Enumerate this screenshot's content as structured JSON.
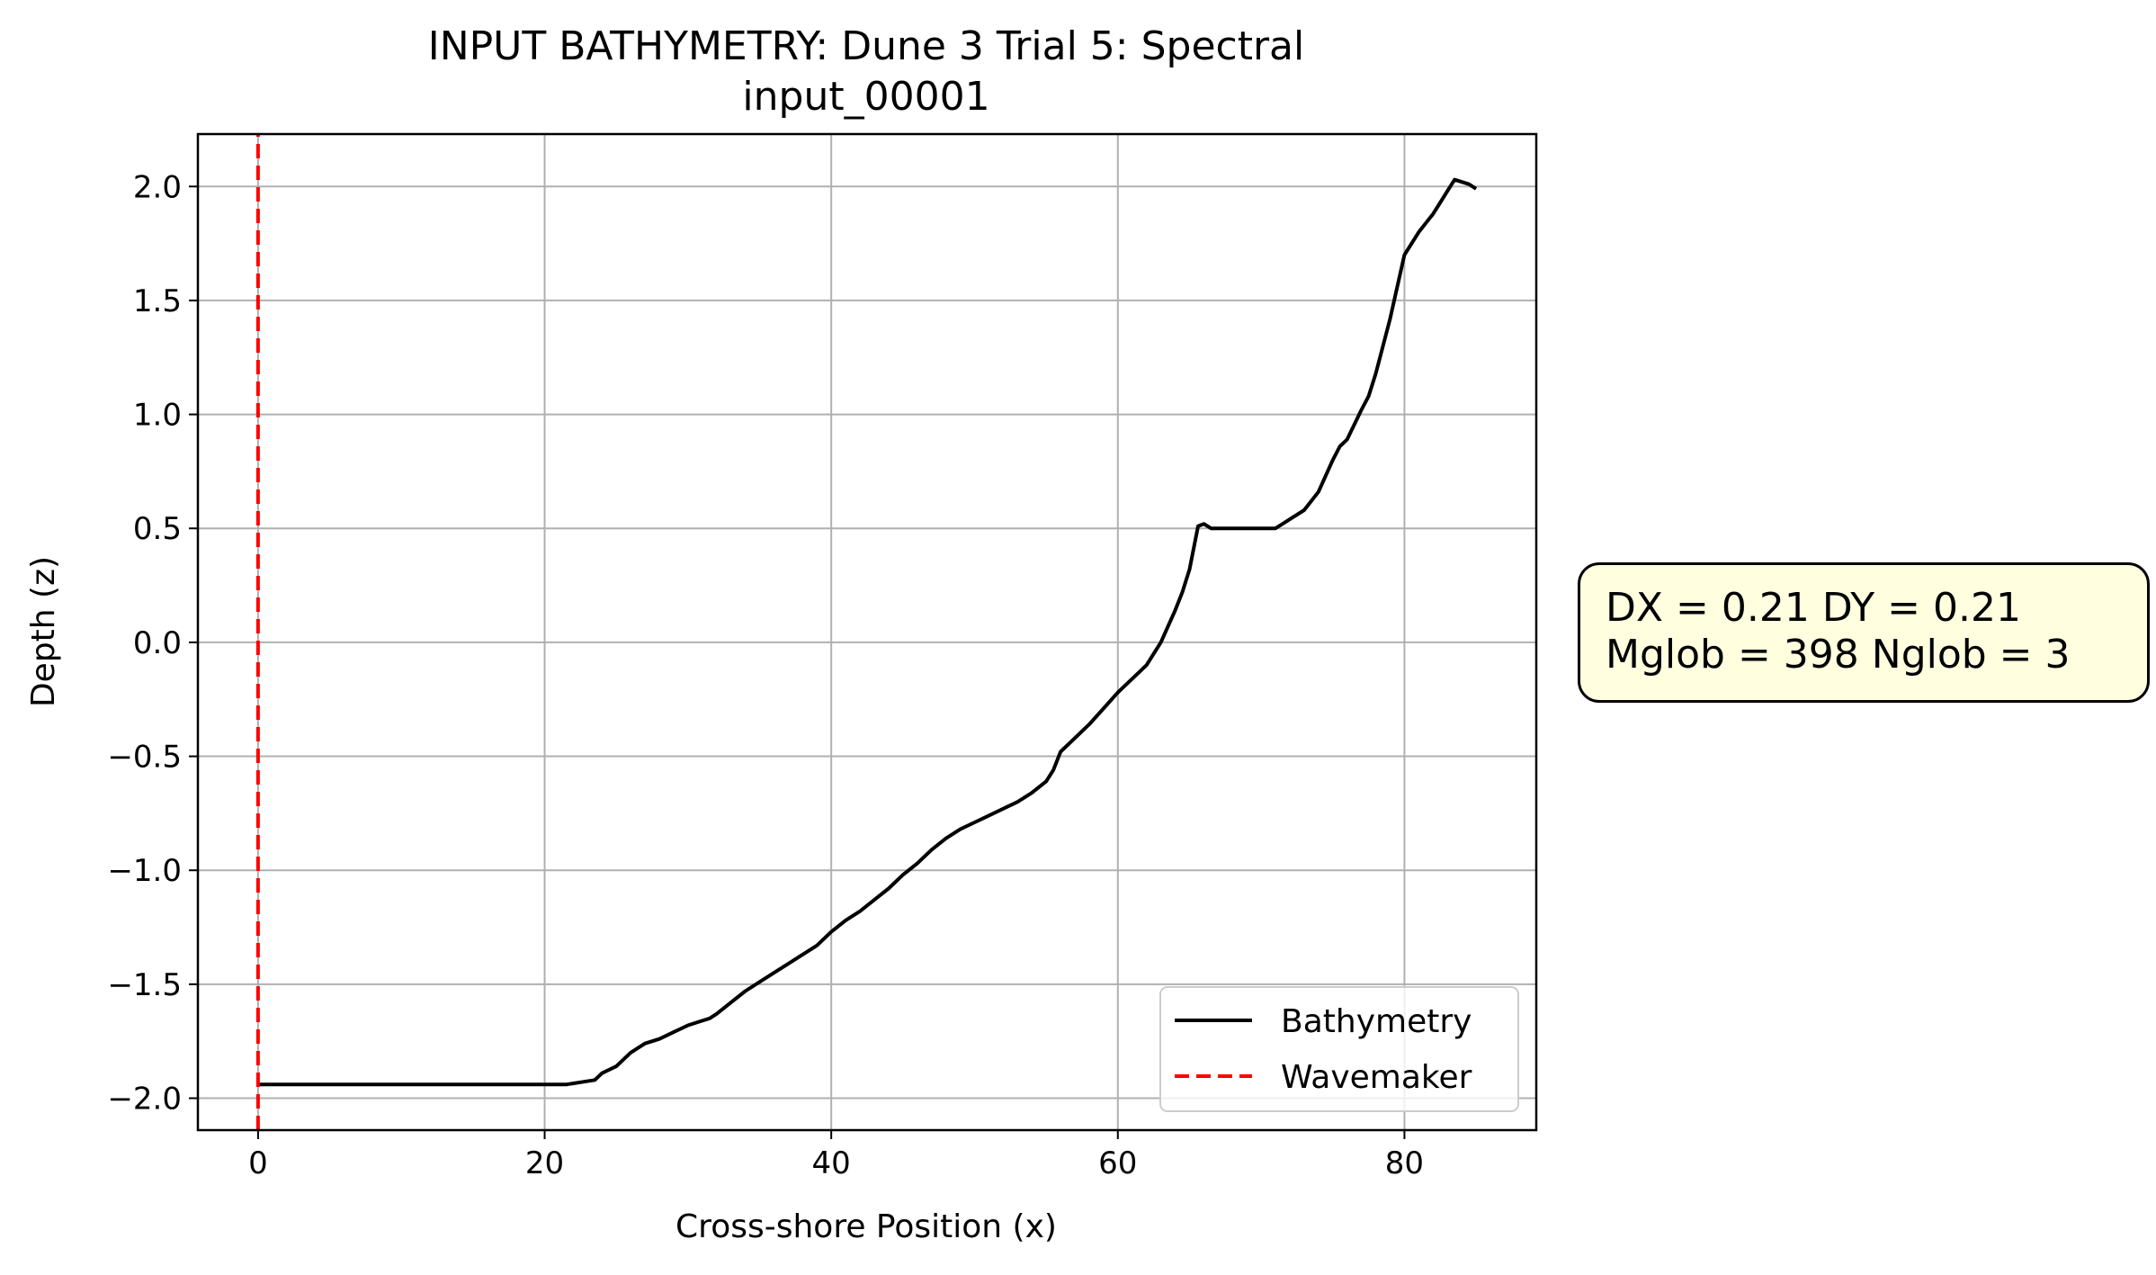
{
  "chart_data": {
    "type": "line",
    "title": "INPUT BATHYMETRY: Dune 3 Trial 5: Spectral",
    "subtitle": "input_00001",
    "xlabel": "Cross-shore Position (x)",
    "ylabel": "Depth (z)",
    "xlim": [
      -4.2,
      89.2
    ],
    "ylim": [
      -2.14,
      2.23
    ],
    "xticks": [
      0,
      20,
      40,
      60,
      80
    ],
    "yticks": [
      -2.0,
      -1.5,
      -1.0,
      -0.5,
      0.0,
      0.5,
      1.0,
      1.5,
      2.0
    ],
    "xtick_labels": [
      "0",
      "20",
      "40",
      "60",
      "80"
    ],
    "ytick_labels": [
      "−2.0",
      "−1.5",
      "−1.0",
      "−0.5",
      "0.0",
      "0.5",
      "1.0",
      "1.5",
      "2.0"
    ],
    "grid": true,
    "legend_position": "lower-right",
    "series": [
      {
        "name": "Bathymetry",
        "color": "#000000",
        "style": "solid",
        "x": [
          0,
          5,
          10,
          15,
          20,
          21.5,
          22.5,
          23.5,
          24,
          25,
          26,
          27,
          28,
          29,
          30,
          31,
          31.5,
          32,
          33,
          34,
          35,
          36,
          37,
          38,
          39,
          40,
          41,
          42,
          43,
          44,
          45,
          46,
          47,
          48,
          49,
          50,
          51,
          52,
          53,
          54,
          55,
          55.5,
          56,
          57,
          58,
          59,
          60,
          61,
          62,
          63,
          64,
          64.5,
          65,
          65.6,
          66,
          66.5,
          67,
          68,
          69,
          70,
          71,
          71.5,
          72,
          73,
          74,
          75,
          75.5,
          76,
          77,
          77.5,
          78,
          79,
          80,
          81,
          81.5,
          82,
          82.5,
          83,
          83.5,
          84,
          84.5,
          85
        ],
        "y": [
          -1.94,
          -1.94,
          -1.94,
          -1.94,
          -1.94,
          -1.94,
          -1.93,
          -1.92,
          -1.89,
          -1.86,
          -1.8,
          -1.76,
          -1.74,
          -1.71,
          -1.68,
          -1.66,
          -1.65,
          -1.63,
          -1.58,
          -1.53,
          -1.49,
          -1.45,
          -1.41,
          -1.37,
          -1.33,
          -1.27,
          -1.22,
          -1.18,
          -1.13,
          -1.08,
          -1.02,
          -0.97,
          -0.91,
          -0.86,
          -0.82,
          -0.79,
          -0.76,
          -0.73,
          -0.7,
          -0.66,
          -0.61,
          -0.56,
          -0.48,
          -0.42,
          -0.36,
          -0.29,
          -0.22,
          -0.16,
          -0.1,
          0.0,
          0.14,
          0.22,
          0.32,
          0.51,
          0.52,
          0.5,
          0.5,
          0.5,
          0.5,
          0.5,
          0.5,
          0.52,
          0.54,
          0.58,
          0.66,
          0.8,
          0.86,
          0.89,
          1.02,
          1.08,
          1.18,
          1.42,
          1.7,
          1.8,
          1.84,
          1.88,
          1.93,
          1.98,
          2.03,
          2.02,
          2.01,
          1.99
        ]
      },
      {
        "name": "Wavemaker",
        "color": "#ff0000",
        "style": "dashed",
        "x": [
          0,
          0
        ],
        "y": [
          -2.14,
          2.23
        ]
      }
    ]
  },
  "info_box": {
    "line1": "DX = 0.21 DY = 0.21",
    "line2": "Mglob = 398 Nglob = 3"
  }
}
